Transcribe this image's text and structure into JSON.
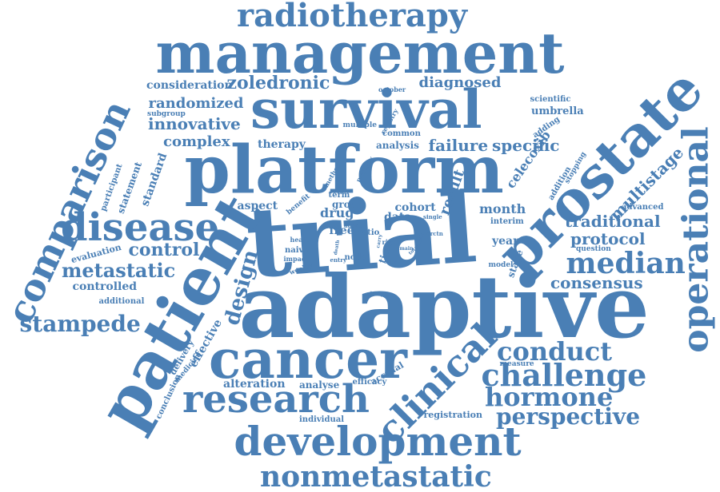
{
  "colors": {
    "word": "#4a7fb5",
    "background": "#ffffff"
  },
  "words": [
    "radiotherapy",
    "management",
    "survival",
    "platform",
    "trial",
    "adaptive",
    "prostate",
    "operational",
    "comparison",
    "patient",
    "cancer",
    "disease",
    "research",
    "development",
    "nonmetastatic",
    "clinical",
    "challenge",
    "hormone",
    "perspective",
    "conduct",
    "median",
    "consensus",
    "design",
    "metastatic",
    "stampede",
    "control",
    "zoledronic",
    "diagnosed",
    "randomized",
    "innovative",
    "complex",
    "consideration",
    "failure",
    "specific",
    "therapy",
    "analysis",
    "common",
    "multiple",
    "registry",
    "subgroup",
    "october",
    "scientific",
    "umbrella",
    "adding",
    "celecoxib",
    "addition",
    "stopping",
    "multistage",
    "advanced",
    "traditional",
    "protocol",
    "question",
    "month",
    "interim",
    "year",
    "stage",
    "model",
    "result",
    "cohort",
    "data",
    "drug",
    "group",
    "term",
    "aspect",
    "benefit",
    "agent",
    "single",
    "health",
    "naive",
    "impact",
    "weekly",
    "evaluation",
    "controlled",
    "additional",
    "participant",
    "statement",
    "standard",
    "method",
    "primary",
    "effective",
    "delivery",
    "medicine",
    "conclusion",
    "alteration",
    "analyse",
    "efficacy",
    "accrual",
    "measure",
    "individual",
    "registration",
    "free",
    "node",
    "ratio",
    "risk",
    "time",
    "offer",
    "entry",
    "death",
    "main",
    "total",
    "trials",
    "carry",
    "nrctn",
    "study"
  ]
}
